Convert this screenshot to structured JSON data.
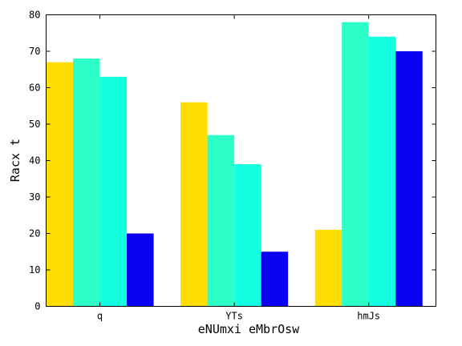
{
  "chart_data": {
    "type": "bar",
    "categories": [
      "q",
      "YTs",
      "hmJs"
    ],
    "series": [
      {
        "color": "#FFDD00",
        "values": [
          67,
          56,
          21
        ]
      },
      {
        "color": "#2CFFC8",
        "values": [
          68,
          47,
          78
        ]
      },
      {
        "color": "#12FFE0",
        "values": [
          63,
          39,
          74
        ]
      },
      {
        "color": "#0A00F2",
        "values": [
          20,
          15,
          70
        ]
      }
    ],
    "xlabel": "eNUmxi eMbrOsw",
    "ylabel": "Racx t",
    "ylim": [
      0,
      80
    ],
    "yticks": [
      0,
      10,
      20,
      30,
      40,
      50,
      60,
      70,
      80
    ],
    "grid": false,
    "legend": "none"
  }
}
